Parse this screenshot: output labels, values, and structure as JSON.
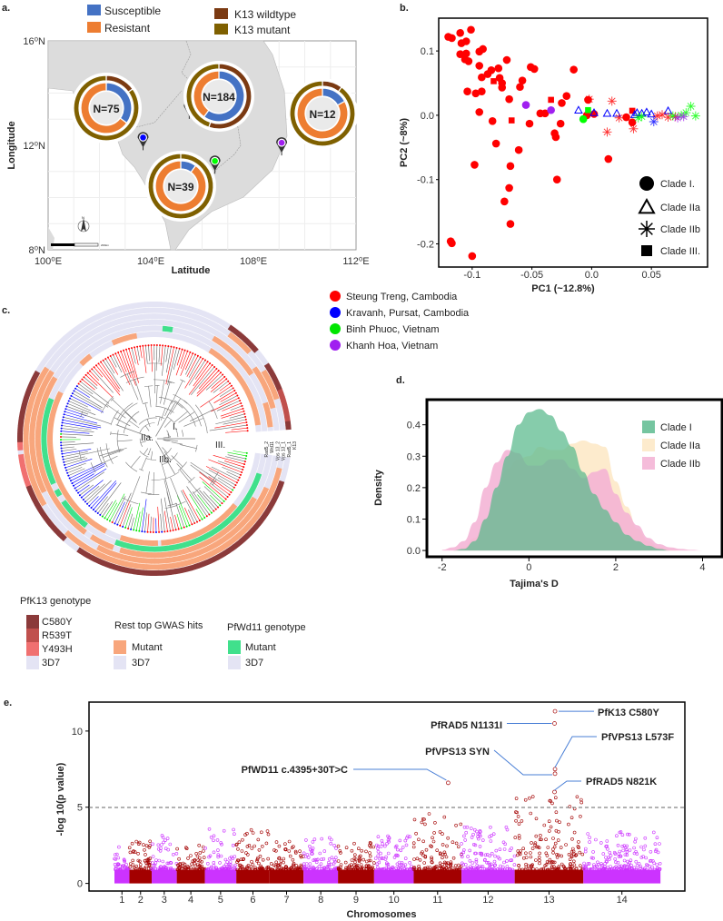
{
  "panels": {
    "a": "a.",
    "b": "b.",
    "c": "c.",
    "d": "d.",
    "e": "e."
  },
  "map": {
    "legend": [
      {
        "label": "Susceptible",
        "color": "#4472c4"
      },
      {
        "label": "Resistant",
        "color": "#ed7d31"
      },
      {
        "label": "K13 wildtype",
        "color": "#7b3a12"
      },
      {
        "label": "K13 mutant",
        "color": "#7f6000"
      }
    ],
    "xlabel": "Latitude",
    "ylabel": "Longitude",
    "xticks": [
      {
        "value": 100,
        "label": "100⁰E"
      },
      {
        "value": 104,
        "label": "104⁰E"
      },
      {
        "value": 108,
        "label": "108⁰E"
      },
      {
        "value": 112,
        "label": "112⁰E"
      }
    ],
    "yticks": [
      {
        "value": 16,
        "label": "16⁰N"
      },
      {
        "value": 12,
        "label": "12⁰N"
      },
      {
        "value": 8,
        "label": "8⁰N"
      }
    ],
    "xlim": [
      100,
      112
    ],
    "ylim": [
      8,
      16
    ],
    "scalebar_label": "200km",
    "north_label": "N",
    "pins": [
      {
        "site": "Steung Treng",
        "color": "#ff0000",
        "lon": 105.5,
        "lat": 13.5
      },
      {
        "site": "Kravanh, Pursat",
        "color": "#0000ff",
        "lon": 103.7,
        "lat": 12.3
      },
      {
        "site": "Binh Phuoc",
        "color": "#00ff00",
        "lon": 106.5,
        "lat": 11.4
      },
      {
        "site": "Khanh Hoa",
        "color": "#a020f0",
        "lon": 109.1,
        "lat": 12.1
      }
    ],
    "donuts": [
      {
        "label": "N=75",
        "susceptible": 0.35,
        "resistant": 0.65,
        "k13_wildtype": 0.15,
        "k13_mutant": 0.85
      },
      {
        "label": "N=184",
        "susceptible": 0.6,
        "resistant": 0.4,
        "k13_wildtype": 0.55,
        "k13_mutant": 0.45
      },
      {
        "label": "N=12",
        "susceptible": 0.17,
        "resistant": 0.83,
        "k13_wildtype": 0.1,
        "k13_mutant": 0.9
      },
      {
        "label": "N=39",
        "susceptible": 0.1,
        "resistant": 0.9,
        "k13_wildtype": 0.0,
        "k13_mutant": 1.0
      }
    ]
  },
  "chart_data": [
    {
      "type": "scatter",
      "title": "",
      "xlabel": "PC1 (~12.8%)",
      "ylabel": "PC2 (~8%)",
      "xlim": [
        -0.128,
        0.097
      ],
      "ylim": [
        -0.236,
        0.151
      ],
      "xticks": [
        {
          "value": -0.1,
          "label": "-0.1"
        },
        {
          "value": -0.05,
          "label": "-0.05"
        },
        {
          "value": 0.0,
          "label": "0.0"
        },
        {
          "value": 0.05,
          "label": "0.05"
        }
      ],
      "yticks": [
        {
          "value": 0.1,
          "label": "0.1"
        },
        {
          "value": 0.0,
          "label": "0.0"
        },
        {
          "value": -0.1,
          "label": "-0.1"
        },
        {
          "value": -0.2,
          "label": "-0.2"
        }
      ],
      "legend": [
        {
          "label": "Clade I.",
          "shape": "circle"
        },
        {
          "label": "Clade IIa",
          "shape": "triangle"
        },
        {
          "label": "Clade IIb",
          "shape": "star"
        },
        {
          "label": "Clade III.",
          "shape": "square"
        }
      ],
      "legend_position": "bottom-right",
      "points": [
        [
          -0.12,
          0.122,
          "I",
          0
        ],
        [
          -0.117,
          0.12,
          "I",
          0
        ],
        [
          -0.11,
          0.128,
          "I",
          0
        ],
        [
          -0.101,
          0.133,
          "I",
          0
        ],
        [
          -0.109,
          0.112,
          "I",
          0
        ],
        [
          -0.105,
          0.115,
          "I",
          0
        ],
        [
          -0.11,
          0.095,
          "I",
          0
        ],
        [
          -0.105,
          0.096,
          "I",
          0
        ],
        [
          -0.106,
          0.087,
          "I",
          0
        ],
        [
          -0.103,
          0.084,
          "I",
          0
        ],
        [
          -0.094,
          0.099,
          "I",
          0
        ],
        [
          -0.091,
          0.103,
          "I",
          0
        ],
        [
          -0.094,
          0.077,
          "I",
          0
        ],
        [
          -0.092,
          0.059,
          "I",
          0
        ],
        [
          -0.087,
          0.064,
          "I",
          0
        ],
        [
          -0.084,
          0.07,
          "I",
          0
        ],
        [
          -0.078,
          0.073,
          "I",
          0
        ],
        [
          -0.077,
          0.058,
          "I",
          0
        ],
        [
          -0.075,
          0.05,
          "I",
          0
        ],
        [
          -0.075,
          0.043,
          "I",
          0
        ],
        [
          -0.071,
          0.086,
          "I",
          0
        ],
        [
          -0.051,
          0.075,
          "I",
          0
        ],
        [
          -0.048,
          0.072,
          "I",
          0
        ],
        [
          -0.058,
          0.054,
          "I",
          0
        ],
        [
          -0.06,
          0.044,
          "I",
          0
        ],
        [
          -0.104,
          0.037,
          "I",
          0
        ],
        [
          -0.097,
          0.034,
          "I",
          0
        ],
        [
          -0.092,
          0.037,
          "I",
          0
        ],
        [
          -0.094,
          0.005,
          "I",
          0
        ],
        [
          -0.069,
          0.025,
          "I",
          0
        ],
        [
          -0.083,
          -0.009,
          "I",
          0
        ],
        [
          -0.052,
          -0.013,
          "I",
          0
        ],
        [
          -0.043,
          0.003,
          "I",
          0
        ],
        [
          -0.039,
          0.003,
          "I",
          0
        ],
        [
          -0.025,
          0.019,
          "I",
          0
        ],
        [
          -0.021,
          0.03,
          "I",
          0
        ],
        [
          -0.015,
          0.071,
          "I",
          0
        ],
        [
          -0.026,
          -0.013,
          "I",
          0
        ],
        [
          -0.031,
          -0.028,
          "I",
          0
        ],
        [
          -0.03,
          -0.034,
          "I",
          0
        ],
        [
          -0.08,
          -0.044,
          "I",
          0
        ],
        [
          -0.061,
          -0.054,
          "I",
          0
        ],
        [
          -0.098,
          -0.077,
          "I",
          0
        ],
        [
          -0.068,
          -0.079,
          "I",
          0
        ],
        [
          -0.069,
          -0.113,
          "I",
          0
        ],
        [
          -0.073,
          -0.134,
          "I",
          0
        ],
        [
          -0.068,
          -0.169,
          "I",
          0
        ],
        [
          -0.029,
          -0.1,
          "I",
          0
        ],
        [
          0.014,
          -0.068,
          "I",
          0
        ],
        [
          -0.118,
          -0.196,
          "I",
          0
        ],
        [
          -0.117,
          -0.199,
          "I",
          0
        ],
        [
          -0.1,
          -0.219,
          "I",
          0
        ],
        [
          -0.003,
          0.024,
          "I",
          0
        ],
        [
          -0.004,
          0.0,
          "I",
          0
        ],
        [
          0.002,
          0.002,
          "I",
          0
        ],
        [
          0.034,
          -0.011,
          "I",
          0
        ],
        [
          0.029,
          -0.003,
          "I",
          0
        ],
        [
          -0.082,
          0.053,
          "III",
          0
        ],
        [
          -0.067,
          -0.008,
          "III",
          0
        ],
        [
          -0.034,
          0.024,
          "III",
          0
        ],
        [
          0.034,
          0.007,
          "III",
          0
        ],
        [
          -0.055,
          0.016,
          "I",
          3
        ],
        [
          -0.034,
          0.008,
          "I",
          3
        ],
        [
          -0.007,
          -0.006,
          "I",
          2
        ],
        [
          -0.003,
          0.008,
          "III",
          2
        ],
        [
          -0.011,
          0.008,
          "IIa",
          1
        ],
        [
          0.002,
          0.004,
          "IIa",
          1
        ],
        [
          0.013,
          0.003,
          "IIa",
          1
        ],
        [
          0.021,
          0.003,
          "IIa",
          1
        ],
        [
          0.038,
          0.004,
          "IIa",
          1
        ],
        [
          0.046,
          0.005,
          "IIa",
          1
        ],
        [
          0.05,
          0.002,
          "IIa",
          1
        ],
        [
          0.064,
          0.007,
          "IIa",
          1
        ],
        [
          0.042,
          0.003,
          "IIa",
          1
        ],
        [
          0.036,
          0.001,
          "IIa",
          1
        ],
        [
          -0.002,
          0.025,
          "IIb",
          0
        ],
        [
          0.017,
          0.022,
          "IIb",
          0
        ],
        [
          0.013,
          -0.026,
          "IIb",
          0
        ],
        [
          0.023,
          -0.004,
          "IIb",
          0
        ],
        [
          0.035,
          -0.021,
          "IIb",
          0
        ],
        [
          0.059,
          0.001,
          "IIb",
          0
        ],
        [
          0.07,
          -0.002,
          "IIb",
          0
        ],
        [
          0.064,
          -0.003,
          "IIb",
          0
        ],
        [
          0.055,
          -0.001,
          "IIb",
          0
        ],
        [
          0.083,
          0.014,
          "IIb",
          2
        ],
        [
          0.087,
          -0.001,
          "IIb",
          2
        ],
        [
          0.075,
          0.0,
          "IIb",
          2
        ],
        [
          0.042,
          -0.002,
          "IIb",
          2
        ],
        [
          0.079,
          0.004,
          "IIb",
          2
        ],
        [
          0.039,
          -0.004,
          "IIb",
          2
        ],
        [
          0.068,
          -0.001,
          "IIb",
          2
        ],
        [
          0.052,
          -0.01,
          "IIb",
          1
        ],
        [
          0.072,
          -0.004,
          "IIb",
          3
        ],
        [
          0.077,
          -0.002,
          "IIb",
          3
        ]
      ]
    },
    {
      "type": "area",
      "title": "",
      "xlabel": "Tajima's D",
      "ylabel": "Density",
      "xlim": [
        -2.35,
        4.45
      ],
      "ylim": [
        -0.02,
        0.48
      ],
      "xticks": [
        {
          "value": -2,
          "label": "-2"
        },
        {
          "value": 0,
          "label": "0"
        },
        {
          "value": 2,
          "label": "2"
        },
        {
          "value": 4,
          "label": "4"
        }
      ],
      "yticks": [
        {
          "value": 0.0,
          "label": "0.0"
        },
        {
          "value": 0.1,
          "label": "0.1"
        },
        {
          "value": 0.2,
          "label": "0.2"
        },
        {
          "value": 0.3,
          "label": "0.3"
        },
        {
          "value": 0.4,
          "label": "0.4"
        }
      ],
      "legend_position": "top-right",
      "x": [
        -2,
        -1.75,
        -1.5,
        -1.25,
        -1,
        -0.75,
        -0.5,
        -0.25,
        0,
        0.25,
        0.5,
        0.75,
        1,
        1.25,
        1.5,
        1.75,
        2,
        2.25,
        2.5,
        2.75,
        3,
        3.25,
        3.5,
        3.75,
        4
      ],
      "series": [
        {
          "name": "Clade IIa",
          "color": "#fde8c4",
          "values": [
            0,
            0,
            0.01,
            0.04,
            0.1,
            0.18,
            0.26,
            0.29,
            0.3,
            0.33,
            0.32,
            0.32,
            0.34,
            0.35,
            0.34,
            0.33,
            0.22,
            0.14,
            0.07,
            0.03,
            0.01,
            0.004,
            0,
            0,
            0
          ]
        },
        {
          "name": "Clade IIb",
          "color": "#f3b0d4",
          "values": [
            0.002,
            0.01,
            0.03,
            0.09,
            0.2,
            0.28,
            0.32,
            0.31,
            0.27,
            0.27,
            0.29,
            0.29,
            0.26,
            0.23,
            0.25,
            0.26,
            0.18,
            0.12,
            0.08,
            0.04,
            0.02,
            0.01,
            0.005,
            0.002,
            0
          ]
        },
        {
          "name": "Clade I",
          "color": "#5dbb8f",
          "values": [
            0,
            0,
            0.005,
            0.03,
            0.1,
            0.2,
            0.3,
            0.4,
            0.44,
            0.45,
            0.43,
            0.38,
            0.33,
            0.25,
            0.18,
            0.13,
            0.09,
            0.05,
            0.03,
            0.015,
            0.005,
            0,
            0,
            0,
            0
          ]
        }
      ]
    },
    {
      "type": "scatter",
      "title": "",
      "xlabel": "Chromosomes",
      "ylabel": "-log 10(p value)",
      "ylim": [
        -0.5,
        11.9
      ],
      "yticks": [
        {
          "value": 0,
          "label": "0"
        },
        {
          "value": 5,
          "label": "5"
        },
        {
          "value": 10,
          "label": "10"
        }
      ],
      "threshold": 5,
      "chromosomes": [
        {
          "label": "1",
          "length_mb": 0.64,
          "color": "#cc33ff",
          "peak": 2.4
        },
        {
          "label": "2",
          "length_mb": 0.95,
          "color": "#a30000",
          "peak": 2.8
        },
        {
          "label": "3",
          "length_mb": 1.07,
          "color": "#cc33ff",
          "peak": 3.2
        },
        {
          "label": "4",
          "length_mb": 1.2,
          "color": "#a30000",
          "peak": 2.6
        },
        {
          "label": "5",
          "length_mb": 1.34,
          "color": "#cc33ff",
          "peak": 3.6
        },
        {
          "label": "6",
          "length_mb": 1.42,
          "color": "#a30000",
          "peak": 3.6
        },
        {
          "label": "7",
          "length_mb": 1.45,
          "color": "#a30000",
          "peak": 2.9
        },
        {
          "label": "8",
          "length_mb": 1.47,
          "color": "#cc33ff",
          "peak": 3.0
        },
        {
          "label": "9",
          "length_mb": 1.54,
          "color": "#a30000",
          "peak": 2.7
        },
        {
          "label": "10",
          "length_mb": 1.69,
          "color": "#cc33ff",
          "peak": 3.2
        },
        {
          "label": "11",
          "length_mb": 2.04,
          "color": "#a30000",
          "peak": 4.6
        },
        {
          "label": "12",
          "length_mb": 2.27,
          "color": "#cc33ff",
          "peak": 3.7
        },
        {
          "label": "13",
          "length_mb": 2.93,
          "color": "#a30000",
          "peak": 5.7
        },
        {
          "label": "14",
          "length_mb": 3.29,
          "color": "#cc33ff",
          "peak": 3.5
        }
      ],
      "hits": [
        {
          "label": "PfK13 C580Y",
          "chrom": "13",
          "pos_mb": 1.72,
          "value": 11.3
        },
        {
          "label": "PfRAD5 N1131I",
          "chrom": "13",
          "pos_mb": 1.7,
          "value": 10.5
        },
        {
          "label": "PfVPS13 L573F",
          "chrom": "13",
          "pos_mb": 1.72,
          "value": 7.5
        },
        {
          "label": "PfVPS13 SYN",
          "chrom": "13",
          "pos_mb": 1.72,
          "value": 7.2
        },
        {
          "label": "PfWD11 c.4395+30T>C",
          "chrom": "11",
          "pos_mb": 1.47,
          "value": 6.6
        },
        {
          "label": "PfRAD5 N821K",
          "chrom": "13",
          "pos_mb": 1.7,
          "value": 6.0
        }
      ]
    }
  ],
  "tree": {
    "clades": [
      "I.",
      "IIa.",
      "IIb.",
      "III."
    ],
    "ring_labels": [
      "Rad5_2",
      "Wd11",
      "Vps 13_2",
      "Vps 13_1",
      "Rad5_1",
      "K13"
    ],
    "sites": [
      {
        "label": "Steung Treng, Cambodia",
        "color": "#ff0000"
      },
      {
        "label": "Kravanh, Pursat, Cambodia",
        "color": "#0000ff"
      },
      {
        "label": "Binh Phuoc, Vietnam",
        "color": "#00e600"
      },
      {
        "label": "Khanh Hoa, Vietnam",
        "color": "#a020f0"
      }
    ],
    "legends": {
      "k13": {
        "title": "PfK13 genotype",
        "items": [
          {
            "label": "C580Y",
            "color": "#8b3a3a"
          },
          {
            "label": "R539T",
            "color": "#c0504d"
          },
          {
            "label": "Y493H",
            "color": "#f07070"
          },
          {
            "label": "3D7",
            "color": "#e4e4f4"
          }
        ]
      },
      "gwas": {
        "title": "Rest top GWAS hits",
        "items": [
          {
            "label": "Mutant",
            "color": "#f8a67c"
          },
          {
            "label": "3D7",
            "color": "#e4e4f4"
          }
        ]
      },
      "wd11": {
        "title": "PfWd11 genotype",
        "items": [
          {
            "label": "Mutant",
            "color": "#40e08c"
          },
          {
            "label": "3D7",
            "color": "#e4e4f4"
          }
        ]
      }
    }
  }
}
